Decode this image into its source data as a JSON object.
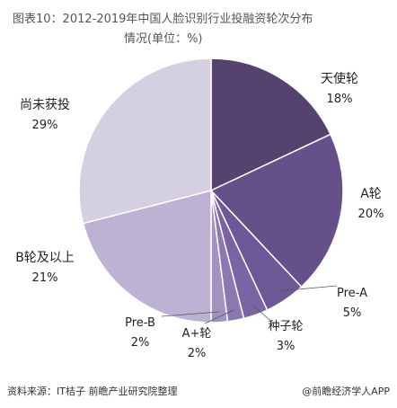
{
  "title": {
    "line1": "图表10：2012-2019年中国人脸识别行业投融资轮次分布",
    "line2": "情况(单位：%)"
  },
  "chart_data": {
    "type": "pie",
    "title": "图表10：2012-2019年中国人脸识别行业投融资轮次分布情况(单位：%)",
    "unit": "%",
    "slices": [
      {
        "label": "天使轮",
        "value": 18,
        "value_label": "18%",
        "color": "#56426f"
      },
      {
        "label": "A轮",
        "value": 20,
        "value_label": "20%",
        "color": "#66508a"
      },
      {
        "label": "Pre-A",
        "value": 5,
        "value_label": "5%",
        "color": "#6c5896"
      },
      {
        "label": "种子轮",
        "value": 3,
        "value_label": "3%",
        "color": "#7a64a4"
      },
      {
        "label": "A+轮",
        "value": 2,
        "value_label": "2%",
        "color": "#8a78b2"
      },
      {
        "label": "Pre-B",
        "value": 2,
        "value_label": "2%",
        "color": "#a193c0"
      },
      {
        "label": "B轮及以上",
        "value": 21,
        "value_label": "21%",
        "color": "#bdb2d3"
      },
      {
        "label": "尚未获投",
        "value": 29,
        "value_label": "29%",
        "color": "#d5cfe2"
      }
    ]
  },
  "footer": {
    "source": "资料来源：IT桔子 前瞻产业研究院整理",
    "brand": "@前瞻经济学人APP"
  }
}
